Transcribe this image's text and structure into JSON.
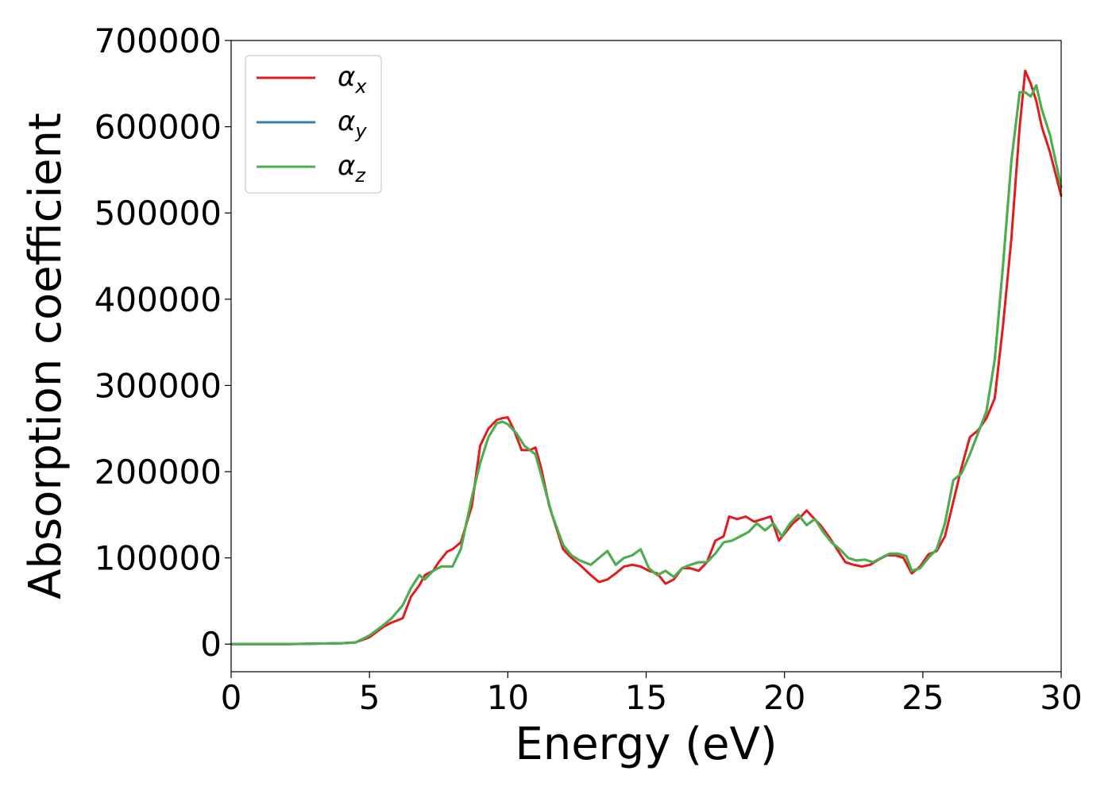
{
  "chart_data": {
    "type": "line",
    "xlabel": "Energy (eV)",
    "ylabel": "Absorption coefficient",
    "xlim": [
      0,
      30
    ],
    "ylim": [
      -32000,
      700000
    ],
    "xticks": [
      0,
      5,
      10,
      15,
      20,
      25,
      30
    ],
    "yticks": [
      0,
      100000,
      200000,
      300000,
      400000,
      500000,
      600000,
      700000
    ],
    "x_tick_labels": [
      "0",
      "5",
      "10",
      "15",
      "20",
      "25",
      "30"
    ],
    "y_tick_labels": [
      "0",
      "100000",
      "200000",
      "300000",
      "400000",
      "500000",
      "600000",
      "700000"
    ],
    "grid": false,
    "legend_position": "top-left",
    "series": [
      {
        "name": "α",
        "subscript": "x",
        "color": "#e41a1c",
        "x": [
          0,
          2,
          4,
          4.5,
          5,
          5.5,
          5.8,
          6.2,
          6.5,
          6.8,
          7.0,
          7.3,
          7.5,
          7.8,
          8.0,
          8.3,
          8.7,
          9.0,
          9.3,
          9.6,
          9.8,
          10.0,
          10.2,
          10.5,
          10.8,
          11.0,
          11.2,
          11.5,
          12.0,
          12.3,
          12.6,
          13.0,
          13.3,
          13.6,
          13.9,
          14.2,
          14.5,
          14.8,
          15.1,
          15.4,
          15.7,
          16.0,
          16.3,
          16.6,
          16.9,
          17.2,
          17.5,
          17.8,
          18.0,
          18.3,
          18.6,
          18.9,
          19.2,
          19.5,
          19.8,
          20.0,
          20.3,
          20.6,
          20.8,
          21.0,
          21.3,
          21.6,
          21.9,
          22.2,
          22.5,
          22.8,
          23.1,
          23.4,
          23.7,
          24.0,
          24.3,
          24.6,
          24.9,
          25.2,
          25.5,
          25.8,
          26.1,
          26.4,
          26.7,
          27.0,
          27.3,
          27.6,
          27.9,
          28.2,
          28.5,
          28.7,
          28.9,
          29.1,
          29.3,
          29.6,
          30.0
        ],
        "y": [
          0,
          0,
          1000,
          2000,
          8000,
          20000,
          25000,
          30000,
          55000,
          68000,
          80000,
          85000,
          95000,
          107000,
          110000,
          118000,
          160000,
          230000,
          250000,
          260000,
          262000,
          263000,
          250000,
          225000,
          225000,
          228000,
          205000,
          160000,
          110000,
          100000,
          92000,
          80000,
          72000,
          75000,
          82000,
          90000,
          92000,
          90000,
          85000,
          82000,
          70000,
          75000,
          88000,
          88000,
          85000,
          95000,
          120000,
          125000,
          148000,
          145000,
          148000,
          142000,
          145000,
          148000,
          120000,
          128000,
          140000,
          148000,
          155000,
          148000,
          138000,
          125000,
          110000,
          95000,
          92000,
          90000,
          92000,
          98000,
          103000,
          103000,
          100000,
          82000,
          90000,
          104000,
          108000,
          125000,
          165000,
          205000,
          240000,
          248000,
          262000,
          285000,
          370000,
          470000,
          600000,
          665000,
          650000,
          630000,
          600000,
          570000,
          520000
        ]
      },
      {
        "name": "α",
        "subscript": "y",
        "color": "#377eb8",
        "x": [
          0,
          2,
          4,
          4.5,
          5,
          5.5,
          5.8,
          6.2,
          6.5,
          6.8,
          7.0,
          7.3,
          7.6,
          8.0,
          8.3,
          8.7,
          9.0,
          9.3,
          9.6,
          9.8,
          10.0,
          10.3,
          10.6,
          11.0,
          11.3,
          11.6,
          12.0,
          12.3,
          12.6,
          13.0,
          13.3,
          13.6,
          13.9,
          14.2,
          14.5,
          14.8,
          15.1,
          15.4,
          15.7,
          16.0,
          16.3,
          16.6,
          16.9,
          17.2,
          17.5,
          17.8,
          18.1,
          18.4,
          18.7,
          19.0,
          19.3,
          19.6,
          19.9,
          20.2,
          20.5,
          20.8,
          21.1,
          21.4,
          21.7,
          22.0,
          22.3,
          22.6,
          22.9,
          23.2,
          23.5,
          23.8,
          24.1,
          24.4,
          24.6,
          24.9,
          25.2,
          25.5,
          25.8,
          26.1,
          26.4,
          26.7,
          27.0,
          27.3,
          27.6,
          27.9,
          28.2,
          28.5,
          28.7,
          28.9,
          29.1,
          29.3,
          29.6,
          30.0
        ],
        "y": [
          0,
          0,
          1000,
          2000,
          10000,
          22000,
          30000,
          45000,
          65000,
          80000,
          75000,
          85000,
          90000,
          90000,
          110000,
          170000,
          210000,
          240000,
          256000,
          258000,
          255000,
          245000,
          230000,
          220000,
          185000,
          150000,
          115000,
          103000,
          97000,
          92000,
          100000,
          108000,
          92000,
          100000,
          103000,
          110000,
          88000,
          80000,
          85000,
          78000,
          88000,
          92000,
          95000,
          95000,
          105000,
          118000,
          120000,
          125000,
          130000,
          140000,
          132000,
          140000,
          125000,
          140000,
          150000,
          138000,
          145000,
          130000,
          118000,
          110000,
          100000,
          97000,
          98000,
          95000,
          100000,
          105000,
          105000,
          102000,
          85000,
          88000,
          100000,
          110000,
          140000,
          190000,
          198000,
          220000,
          245000,
          270000,
          330000,
          440000,
          560000,
          640000,
          640000,
          635000,
          648000,
          620000,
          590000,
          530000
        ]
      },
      {
        "name": "α",
        "subscript": "z",
        "color": "#4daf4a",
        "x": [
          0,
          2,
          4,
          4.5,
          5,
          5.5,
          5.8,
          6.2,
          6.5,
          6.8,
          7.0,
          7.3,
          7.6,
          8.0,
          8.3,
          8.7,
          9.0,
          9.3,
          9.6,
          9.8,
          10.0,
          10.3,
          10.6,
          11.0,
          11.3,
          11.6,
          12.0,
          12.3,
          12.6,
          13.0,
          13.3,
          13.6,
          13.9,
          14.2,
          14.5,
          14.8,
          15.1,
          15.4,
          15.7,
          16.0,
          16.3,
          16.6,
          16.9,
          17.2,
          17.5,
          17.8,
          18.1,
          18.4,
          18.7,
          19.0,
          19.3,
          19.6,
          19.9,
          20.2,
          20.5,
          20.8,
          21.1,
          21.4,
          21.7,
          22.0,
          22.3,
          22.6,
          22.9,
          23.2,
          23.5,
          23.8,
          24.1,
          24.4,
          24.6,
          24.9,
          25.2,
          25.5,
          25.8,
          26.1,
          26.4,
          26.7,
          27.0,
          27.3,
          27.6,
          27.9,
          28.2,
          28.5,
          28.7,
          28.9,
          29.1,
          29.3,
          29.6,
          30.0
        ],
        "y": [
          0,
          0,
          1000,
          2000,
          10000,
          22000,
          30000,
          45000,
          65000,
          80000,
          75000,
          85000,
          90000,
          90000,
          110000,
          170000,
          210000,
          240000,
          256000,
          258000,
          255000,
          245000,
          230000,
          220000,
          185000,
          150000,
          115000,
          103000,
          97000,
          92000,
          100000,
          108000,
          92000,
          100000,
          103000,
          110000,
          88000,
          80000,
          85000,
          78000,
          88000,
          92000,
          95000,
          95000,
          105000,
          118000,
          120000,
          125000,
          130000,
          140000,
          132000,
          140000,
          125000,
          140000,
          150000,
          138000,
          145000,
          130000,
          118000,
          110000,
          100000,
          97000,
          98000,
          95000,
          100000,
          105000,
          105000,
          102000,
          85000,
          88000,
          100000,
          110000,
          140000,
          190000,
          198000,
          220000,
          245000,
          270000,
          330000,
          440000,
          560000,
          640000,
          640000,
          635000,
          648000,
          620000,
          590000,
          530000
        ]
      }
    ]
  }
}
